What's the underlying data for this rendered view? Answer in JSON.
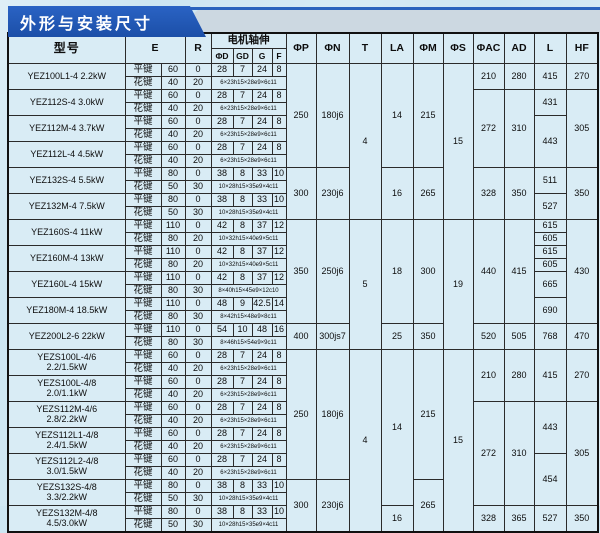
{
  "title": "外形与安装尺寸",
  "colors": {
    "title_bar_blue": "#1c4fa8",
    "band_gray": "#ccd8e1",
    "page_bg": "#cde6f2",
    "table_bg": "#d9ecf5",
    "border": "#2b2b2b",
    "title_text": "#ffffff"
  },
  "table": {
    "header": {
      "model": "型号",
      "e": "E",
      "r": "R",
      "shaft": "电机轴伸",
      "shaft_sub": [
        "ΦD",
        "GD",
        "G",
        "F"
      ],
      "cols": [
        "ΦP",
        "ΦN",
        "T",
        "LA",
        "ΦM",
        "ΦS",
        "ΦAC",
        "AD",
        "L",
        "HF"
      ]
    },
    "key_labels": [
      "平键",
      "花键"
    ],
    "rows": [
      [
        {
          "t": "YEZ100L1-4 2.2kW",
          "rs": 2,
          "c": "model"
        },
        {
          "t": "平键",
          "c": "key"
        },
        {
          "t": "60"
        },
        {
          "t": "0"
        },
        {
          "t": "28"
        },
        {
          "t": "7"
        },
        {
          "t": "24"
        },
        {
          "t": "8"
        },
        {
          "t": "250",
          "rs": 8
        },
        {
          "t": "180j6",
          "rs": 8
        },
        {
          "t": "4",
          "rs": 12
        },
        {
          "t": "14",
          "rs": 8
        },
        {
          "t": "215",
          "rs": 8
        },
        {
          "t": "15",
          "rs": 12
        },
        {
          "t": "210",
          "rs": 2
        },
        {
          "t": "280",
          "rs": 2
        },
        {
          "t": "415",
          "rs": 2
        },
        {
          "t": "270",
          "rs": 2
        }
      ],
      [
        {
          "t": "花键",
          "c": "key"
        },
        {
          "t": "40"
        },
        {
          "t": "20"
        },
        {
          "t": "6×23h15×28e9×6c11",
          "cs": 4,
          "c": "spline"
        }
      ],
      [
        {
          "t": "YEZ112S-4 3.0kW",
          "rs": 2,
          "c": "model"
        },
        {
          "t": "平键",
          "c": "key"
        },
        {
          "t": "60"
        },
        {
          "t": "0"
        },
        {
          "t": "28"
        },
        {
          "t": "7"
        },
        {
          "t": "24"
        },
        {
          "t": "8"
        },
        {
          "t": "272",
          "rs": 6
        },
        {
          "t": "310",
          "rs": 6
        },
        {
          "t": "431",
          "rs": 2
        },
        {
          "t": "305",
          "rs": 6
        }
      ],
      [
        {
          "t": "花键",
          "c": "key"
        },
        {
          "t": "40"
        },
        {
          "t": "20"
        },
        {
          "t": "6×23h15×28e9×6c11",
          "cs": 4,
          "c": "spline"
        }
      ],
      [
        {
          "t": "YEZ112M-4 3.7kW",
          "rs": 2,
          "c": "model"
        },
        {
          "t": "平键",
          "c": "key"
        },
        {
          "t": "60"
        },
        {
          "t": "0"
        },
        {
          "t": "28"
        },
        {
          "t": "7"
        },
        {
          "t": "24"
        },
        {
          "t": "8"
        },
        {
          "t": "443",
          "rs": 4
        }
      ],
      [
        {
          "t": "花键",
          "c": "key"
        },
        {
          "t": "40"
        },
        {
          "t": "20"
        },
        {
          "t": "6×23h15×28e9×6c11",
          "cs": 4,
          "c": "spline"
        }
      ],
      [
        {
          "t": "YEZ112L-4 4.5kW",
          "rs": 2,
          "c": "model"
        },
        {
          "t": "平键",
          "c": "key"
        },
        {
          "t": "60"
        },
        {
          "t": "0"
        },
        {
          "t": "28"
        },
        {
          "t": "7"
        },
        {
          "t": "24"
        },
        {
          "t": "8"
        }
      ],
      [
        {
          "t": "花键",
          "c": "key"
        },
        {
          "t": "40"
        },
        {
          "t": "20"
        },
        {
          "t": "6×23h15×28e9×6c11",
          "cs": 4,
          "c": "spline"
        }
      ],
      [
        {
          "t": "YEZ132S-4 5.5kW",
          "rs": 2,
          "c": "model"
        },
        {
          "t": "平键",
          "c": "key"
        },
        {
          "t": "80"
        },
        {
          "t": "0"
        },
        {
          "t": "38"
        },
        {
          "t": "8"
        },
        {
          "t": "33"
        },
        {
          "t": "10"
        },
        {
          "t": "300",
          "rs": 4
        },
        {
          "t": "230j6",
          "rs": 4
        },
        {
          "t": "16",
          "rs": 4
        },
        {
          "t": "265",
          "rs": 4
        },
        {
          "t": "328",
          "rs": 4
        },
        {
          "t": "350",
          "rs": 4
        },
        {
          "t": "511",
          "rs": 2
        },
        {
          "t": "350",
          "rs": 4
        }
      ],
      [
        {
          "t": "花键",
          "c": "key"
        },
        {
          "t": "50"
        },
        {
          "t": "30"
        },
        {
          "t": "10×28h15×35e9×4c11",
          "cs": 4,
          "c": "spline"
        }
      ],
      [
        {
          "t": "YEZ132M-4 7.5kW",
          "rs": 2,
          "c": "model"
        },
        {
          "t": "平键",
          "c": "key"
        },
        {
          "t": "80"
        },
        {
          "t": "0"
        },
        {
          "t": "38"
        },
        {
          "t": "8"
        },
        {
          "t": "33"
        },
        {
          "t": "10"
        },
        {
          "t": "527",
          "rs": 2
        }
      ],
      [
        {
          "t": "花键",
          "c": "key"
        },
        {
          "t": "50"
        },
        {
          "t": "30"
        },
        {
          "t": "10×28h15×35e9×4c11",
          "cs": 4,
          "c": "spline"
        }
      ],
      [
        {
          "t": "YEZ160S-4 11kW",
          "rs": 2,
          "c": "model"
        },
        {
          "t": "平键",
          "c": "key"
        },
        {
          "t": "110"
        },
        {
          "t": "0"
        },
        {
          "t": "42"
        },
        {
          "t": "8"
        },
        {
          "t": "37"
        },
        {
          "t": "12"
        },
        {
          "t": "350",
          "rs": 8
        },
        {
          "t": "250j6",
          "rs": 8
        },
        {
          "t": "5",
          "rs": 10
        },
        {
          "t": "18",
          "rs": 8
        },
        {
          "t": "300",
          "rs": 8
        },
        {
          "t": "19",
          "rs": 10
        },
        {
          "t": "440",
          "rs": 8
        },
        {
          "t": "415",
          "rs": 8
        },
        {
          "t": "615"
        },
        {
          "t": "430",
          "rs": 8
        }
      ],
      [
        {
          "t": "花键",
          "c": "key"
        },
        {
          "t": "80"
        },
        {
          "t": "20"
        },
        {
          "t": "10×32h15×40e9×5c11",
          "cs": 4,
          "c": "spline"
        },
        {
          "t": "605"
        }
      ],
      [
        {
          "t": "YEZ160M-4 13kW",
          "rs": 2,
          "c": "model"
        },
        {
          "t": "平键",
          "c": "key"
        },
        {
          "t": "110"
        },
        {
          "t": "0"
        },
        {
          "t": "42"
        },
        {
          "t": "8"
        },
        {
          "t": "37"
        },
        {
          "t": "12"
        },
        {
          "t": "615"
        }
      ],
      [
        {
          "t": "花键",
          "c": "key"
        },
        {
          "t": "80"
        },
        {
          "t": "20"
        },
        {
          "t": "10×32h15×40e9×5c11",
          "cs": 4,
          "c": "spline"
        },
        {
          "t": "605"
        }
      ],
      [
        {
          "t": "YEZ160L-4 15kW",
          "rs": 2,
          "c": "model"
        },
        {
          "t": "平键",
          "c": "key"
        },
        {
          "t": "110"
        },
        {
          "t": "0"
        },
        {
          "t": "42"
        },
        {
          "t": "8"
        },
        {
          "t": "37"
        },
        {
          "t": "12"
        },
        {
          "t": "665",
          "rs": 2
        }
      ],
      [
        {
          "t": "花键",
          "c": "key"
        },
        {
          "t": "80"
        },
        {
          "t": "30"
        },
        {
          "t": "8×40h15×45e9×12c10",
          "cs": 4,
          "c": "spline"
        }
      ],
      [
        {
          "t": "YEZ180M-4 18.5kW",
          "rs": 2,
          "c": "model"
        },
        {
          "t": "平键",
          "c": "key"
        },
        {
          "t": "110"
        },
        {
          "t": "0"
        },
        {
          "t": "48"
        },
        {
          "t": "9"
        },
        {
          "t": "42.5"
        },
        {
          "t": "14"
        },
        {
          "t": "690",
          "rs": 2
        }
      ],
      [
        {
          "t": "花键",
          "c": "key"
        },
        {
          "t": "80"
        },
        {
          "t": "30"
        },
        {
          "t": "8×42h15×48e9×8c11",
          "cs": 4,
          "c": "spline"
        }
      ],
      [
        {
          "t": "YEZ200L2-6 22kW",
          "rs": 2,
          "c": "model"
        },
        {
          "t": "平键",
          "c": "key"
        },
        {
          "t": "110"
        },
        {
          "t": "0"
        },
        {
          "t": "54"
        },
        {
          "t": "10"
        },
        {
          "t": "48"
        },
        {
          "t": "16"
        },
        {
          "t": "400",
          "rs": 2
        },
        {
          "t": "300js7",
          "rs": 2
        },
        {
          "t": "25",
          "rs": 2
        },
        {
          "t": "350",
          "rs": 2
        },
        {
          "t": "520",
          "rs": 2
        },
        {
          "t": "505",
          "rs": 2
        },
        {
          "t": "768",
          "rs": 2
        },
        {
          "t": "470",
          "rs": 2
        }
      ],
      [
        {
          "t": "花键",
          "c": "key"
        },
        {
          "t": "80"
        },
        {
          "t": "30"
        },
        {
          "t": "8×46h15×54e9×9c11",
          "cs": 4,
          "c": "spline"
        }
      ],
      [
        {
          "t": "YEZS100L-4/6\n2.2/1.5kW",
          "rs": 2,
          "c": "model"
        },
        {
          "t": "平键",
          "c": "key"
        },
        {
          "t": "60"
        },
        {
          "t": "0"
        },
        {
          "t": "28"
        },
        {
          "t": "7"
        },
        {
          "t": "24"
        },
        {
          "t": "8"
        },
        {
          "t": "250",
          "rs": 10
        },
        {
          "t": "180j6",
          "rs": 10
        },
        {
          "t": "4",
          "rs": 14
        },
        {
          "t": "14",
          "rs": 12
        },
        {
          "t": "215",
          "rs": 10
        },
        {
          "t": "15",
          "rs": 14
        },
        {
          "t": "210",
          "rs": 4
        },
        {
          "t": "280",
          "rs": 4
        },
        {
          "t": "415",
          "rs": 4
        },
        {
          "t": "270",
          "rs": 4
        }
      ],
      [
        {
          "t": "花键",
          "c": "key"
        },
        {
          "t": "40"
        },
        {
          "t": "20"
        },
        {
          "t": "6×23h15×28e9×6c11",
          "cs": 4,
          "c": "spline"
        }
      ],
      [
        {
          "t": "YEZS100L-4/8\n2.0/1.1kW",
          "rs": 2,
          "c": "model"
        },
        {
          "t": "平键",
          "c": "key"
        },
        {
          "t": "60"
        },
        {
          "t": "0"
        },
        {
          "t": "28"
        },
        {
          "t": "7"
        },
        {
          "t": "24"
        },
        {
          "t": "8"
        }
      ],
      [
        {
          "t": "花键",
          "c": "key"
        },
        {
          "t": "40"
        },
        {
          "t": "20"
        },
        {
          "t": "6×23h15×28e9×6c11",
          "cs": 4,
          "c": "spline"
        }
      ],
      [
        {
          "t": "YEZS112M-4/6\n2.8/2.2kW",
          "rs": 2,
          "c": "model"
        },
        {
          "t": "平键",
          "c": "key"
        },
        {
          "t": "60"
        },
        {
          "t": "0"
        },
        {
          "t": "28"
        },
        {
          "t": "7"
        },
        {
          "t": "24"
        },
        {
          "t": "8"
        },
        {
          "t": "272",
          "rs": 8
        },
        {
          "t": "310",
          "rs": 8
        },
        {
          "t": "443",
          "rs": 4
        },
        {
          "t": "305",
          "rs": 8
        }
      ],
      [
        {
          "t": "花键",
          "c": "key"
        },
        {
          "t": "40"
        },
        {
          "t": "20"
        },
        {
          "t": "6×23h15×28e9×6c11",
          "cs": 4,
          "c": "spline"
        }
      ],
      [
        {
          "t": "YEZS112L1-4/8\n2.4/1.5kW",
          "rs": 2,
          "c": "model"
        },
        {
          "t": "平键",
          "c": "key"
        },
        {
          "t": "60"
        },
        {
          "t": "0"
        },
        {
          "t": "28"
        },
        {
          "t": "7"
        },
        {
          "t": "24"
        },
        {
          "t": "8"
        }
      ],
      [
        {
          "t": "花键",
          "c": "key"
        },
        {
          "t": "40"
        },
        {
          "t": "20"
        },
        {
          "t": "6×23h15×28e9×6c11",
          "cs": 4,
          "c": "spline"
        }
      ],
      [
        {
          "t": "YEZS112L2-4/8\n3.0/1.5kW",
          "rs": 2,
          "c": "model"
        },
        {
          "t": "平键",
          "c": "key"
        },
        {
          "t": "60"
        },
        {
          "t": "0"
        },
        {
          "t": "28"
        },
        {
          "t": "7"
        },
        {
          "t": "24"
        },
        {
          "t": "8"
        },
        {
          "t": "454",
          "rs": 4
        }
      ],
      [
        {
          "t": "花键",
          "c": "key"
        },
        {
          "t": "40"
        },
        {
          "t": "20"
        },
        {
          "t": "6×23h15×28e9×6c11",
          "cs": 4,
          "c": "spline"
        }
      ],
      [
        {
          "t": "YEZS132S-4/8\n3.3/2.2kW",
          "rs": 2,
          "c": "model"
        },
        {
          "t": "平键",
          "c": "key"
        },
        {
          "t": "80"
        },
        {
          "t": "0"
        },
        {
          "t": "38"
        },
        {
          "t": "8"
        },
        {
          "t": "33"
        },
        {
          "t": "10"
        },
        {
          "t": "300",
          "rs": 4
        },
        {
          "t": "230j6",
          "rs": 4
        },
        {
          "t": "265",
          "rs": 4
        }
      ],
      [
        {
          "t": "花键",
          "c": "key"
        },
        {
          "t": "50"
        },
        {
          "t": "30"
        },
        {
          "t": "10×28h15×35e9×4c11",
          "cs": 4,
          "c": "spline"
        }
      ],
      [
        {
          "t": "YEZS132M-4/8\n4.5/3.0kW",
          "rs": 2,
          "c": "model"
        },
        {
          "t": "平键",
          "c": "key"
        },
        {
          "t": "80"
        },
        {
          "t": "0"
        },
        {
          "t": "38"
        },
        {
          "t": "8"
        },
        {
          "t": "33"
        },
        {
          "t": "10"
        },
        {
          "t": "16",
          "rs": 2
        },
        {
          "t": "328",
          "rs": 2
        },
        {
          "t": "365",
          "rs": 2
        },
        {
          "t": "527",
          "rs": 2
        },
        {
          "t": "350",
          "rs": 2
        }
      ],
      [
        {
          "t": "花键",
          "c": "key"
        },
        {
          "t": "50"
        },
        {
          "t": "30"
        },
        {
          "t": "10×28h15×35e9×4c11",
          "cs": 4,
          "c": "spline"
        }
      ]
    ]
  }
}
